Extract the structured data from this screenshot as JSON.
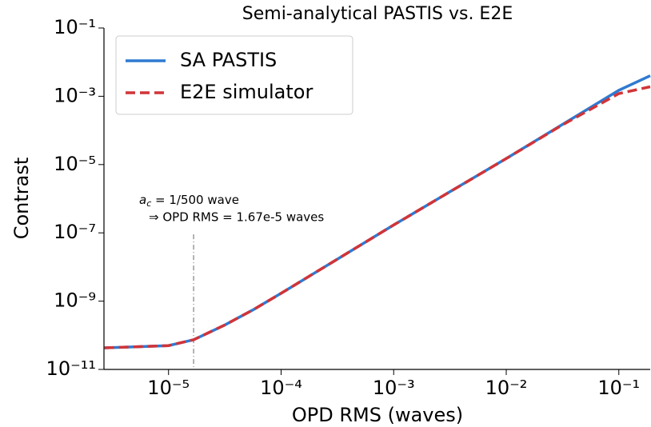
{
  "chart_data": {
    "type": "line",
    "title": "Semi-analytical PASTIS vs. E2E",
    "xlabel": "OPD RMS (waves)",
    "ylabel": "Contrast",
    "xscale": "log",
    "yscale": "log",
    "xlim": [
      2.67e-06,
      0.19
    ],
    "ylim": [
      1e-11,
      0.1
    ],
    "xticks": [
      {
        "value": 1e-05,
        "label": "10⁻⁵"
      },
      {
        "value": 0.0001,
        "label": "10⁻⁴"
      },
      {
        "value": 0.001,
        "label": "10⁻³"
      },
      {
        "value": 0.01,
        "label": "10⁻²"
      },
      {
        "value": 0.1,
        "label": "10⁻¹"
      }
    ],
    "yticks": [
      {
        "value": 1e-11,
        "label": "10⁻¹¹"
      },
      {
        "value": 1e-09,
        "label": "10⁻⁹"
      },
      {
        "value": 1e-07,
        "label": "10⁻⁷"
      },
      {
        "value": 1e-05,
        "label": "10⁻⁵"
      },
      {
        "value": 0.001,
        "label": "10⁻³"
      },
      {
        "value": 0.1,
        "label": "10⁻¹"
      }
    ],
    "x": [
      2.7e-06,
      5e-06,
      1e-05,
      1.67e-05,
      3.16e-05,
      5.6e-05,
      0.0001,
      0.000316,
      0.001,
      0.00316,
      0.01,
      0.0316,
      0.1,
      0.19
    ],
    "series": [
      {
        "name": "SA PASTIS",
        "color": "#2f7ad1",
        "dash": "solid",
        "values": [
          4.3e-11,
          4.6e-11,
          5e-11,
          7.4e-11,
          2e-10,
          5.5e-10,
          1.7e-09,
          1.7e-08,
          1.7e-07,
          1.6e-06,
          1.5e-05,
          0.00015,
          0.0015,
          0.004
        ]
      },
      {
        "name": "E2E simulator",
        "color": "#d13438",
        "dash": "dashed",
        "values": [
          4.3e-11,
          4.6e-11,
          5e-11,
          7.4e-11,
          2e-10,
          5.5e-10,
          1.7e-09,
          1.7e-08,
          1.7e-07,
          1.6e-06,
          1.5e-05,
          0.000145,
          0.0012,
          0.0019
        ]
      }
    ],
    "legend": "upper left",
    "vline": {
      "x": 1.67e-05,
      "ymax": 9e-08
    },
    "annotation": {
      "symbol": "a",
      "subscript": "c",
      "text": " = 1/500 wave",
      "line2": "⇒ OPD RMS = 1.67e-5 waves"
    }
  }
}
